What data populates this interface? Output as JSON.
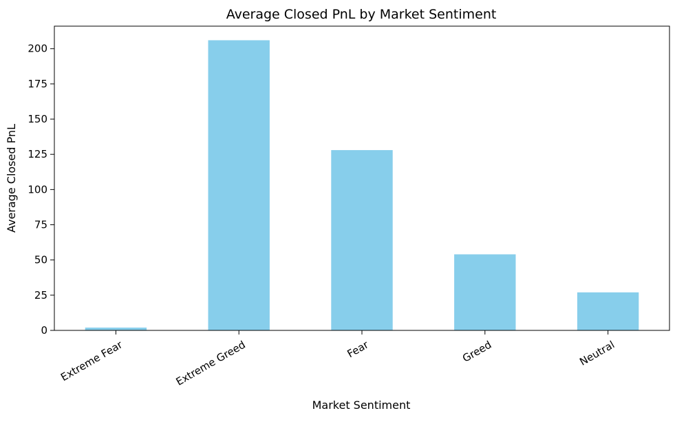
{
  "chart_data": {
    "type": "bar",
    "title": "Average Closed PnL by Market Sentiment",
    "xlabel": "Market Sentiment",
    "ylabel": "Average Closed PnL",
    "categories": [
      "Extreme Fear",
      "Extreme Greed",
      "Fear",
      "Greed",
      "Neutral"
    ],
    "values": [
      2,
      206,
      128,
      54,
      27
    ],
    "ylim": [
      0,
      216
    ],
    "yticks": [
      0,
      25,
      50,
      75,
      100,
      125,
      150,
      175,
      200
    ],
    "grid": false,
    "bar_color": "#87ceeb"
  }
}
